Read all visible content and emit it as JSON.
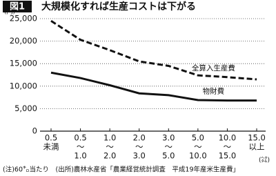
{
  "chart_data": {
    "type": "line",
    "figure_label": "図1",
    "title": "大規模化すれば生産コストは下がる",
    "y_unit": "(円)",
    "x_unit": "(㌶)",
    "note": "(注)60㌔当たり　(出所)農林水産省「農業経営統計調査　平成19年産米生産費」",
    "categories": [
      [
        "0.5",
        "未満"
      ],
      [
        "0.5",
        "〜",
        "1.0"
      ],
      [
        "1.0",
        "〜",
        "2.0"
      ],
      [
        "2.0",
        "〜",
        "3.0"
      ],
      [
        "3.0",
        "〜",
        "5.0"
      ],
      [
        "5.0",
        "〜",
        "10.0"
      ],
      [
        "10.0",
        "〜",
        "15.0"
      ],
      [
        "15.0",
        "以上"
      ]
    ],
    "series": [
      {
        "name": "全算入生産費",
        "color": "#111111",
        "dashed": true,
        "values": [
          24500,
          20300,
          18000,
          15500,
          14500,
          12400,
          12000,
          11500
        ]
      },
      {
        "name": "物財費",
        "color": "#111111",
        "dashed": false,
        "values": [
          13000,
          11800,
          10200,
          8400,
          8000,
          6900,
          6800,
          6800
        ]
      }
    ],
    "ylim": [
      0,
      25000
    ],
    "yticks": [
      0,
      {
        "value": 5000,
        "label": "5,000"
      },
      {
        "value": 10000,
        "label": "10,000"
      },
      {
        "value": 15000,
        "label": "15,000"
      },
      {
        "value": 20000,
        "label": "20,000"
      },
      {
        "value": 25000,
        "label": "25,000"
      }
    ],
    "grid": true
  }
}
